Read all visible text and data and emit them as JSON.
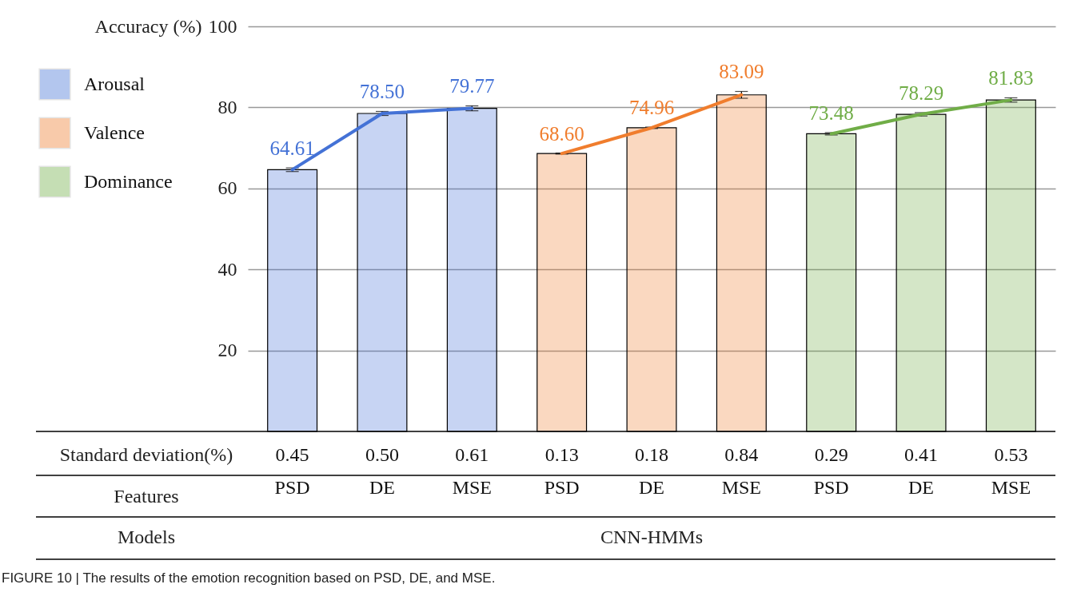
{
  "chart_data": {
    "type": "bar",
    "ylabel": "Accuracy (%)",
    "categories": [
      "PSD",
      "DE",
      "MSE",
      "PSD",
      "DE",
      "MSE",
      "PSD",
      "DE",
      "MSE"
    ],
    "series": [
      {
        "name": "Arousal",
        "color": "#4472d6",
        "values": [
          64.61,
          78.5,
          79.77,
          null,
          null,
          null,
          null,
          null,
          null
        ],
        "errors": [
          0.45,
          0.5,
          0.61,
          null,
          null,
          null,
          null,
          null,
          null
        ],
        "value_labels": [
          "64.61",
          "78.50",
          "79.77",
          null,
          null,
          null,
          null,
          null,
          null
        ]
      },
      {
        "name": "Valence",
        "color": "#f07d2d",
        "values": [
          null,
          null,
          null,
          68.6,
          74.96,
          83.09,
          null,
          null,
          null
        ],
        "errors": [
          null,
          null,
          null,
          0.13,
          0.18,
          0.84,
          null,
          null,
          null
        ],
        "value_labels": [
          null,
          null,
          null,
          "68.60",
          "74.96",
          "83.09",
          null,
          null,
          null
        ]
      },
      {
        "name": "Dominance",
        "color": "#70ad47",
        "values": [
          null,
          null,
          null,
          null,
          null,
          null,
          73.48,
          78.29,
          81.83
        ],
        "errors": [
          null,
          null,
          null,
          null,
          null,
          null,
          0.29,
          0.41,
          0.53
        ],
        "value_labels": [
          null,
          null,
          null,
          null,
          null,
          null,
          "73.48",
          "78.29",
          "81.83"
        ]
      },
      {
        "type": "line",
        "color": "#4472d6",
        "values": [
          64.61,
          78.5,
          79.77,
          null,
          null,
          null,
          null,
          null,
          null
        ]
      },
      {
        "type": "line",
        "color": "#f07d2d",
        "values": [
          null,
          null,
          null,
          68.6,
          74.96,
          83.09,
          null,
          null,
          null
        ]
      },
      {
        "type": "line",
        "color": "#70ad47",
        "values": [
          null,
          null,
          null,
          null,
          null,
          null,
          73.48,
          78.29,
          81.83
        ]
      }
    ],
    "ylim": [
      0,
      100
    ],
    "yticks": [
      20,
      40,
      60,
      80,
      100
    ],
    "grid": "y",
    "legend": "top left",
    "annotations": [
      "Standard deviation(%)",
      "Features",
      "Models",
      "CNN-HMMs",
      "FIGURE 10 | The results of the emotion recognition based on PSD, DE, and MSE.",
      "0.45",
      "0.50",
      "0.61",
      "0.13",
      "0.18",
      "0.84",
      "0.29",
      "0.41",
      "0.53"
    ]
  }
}
